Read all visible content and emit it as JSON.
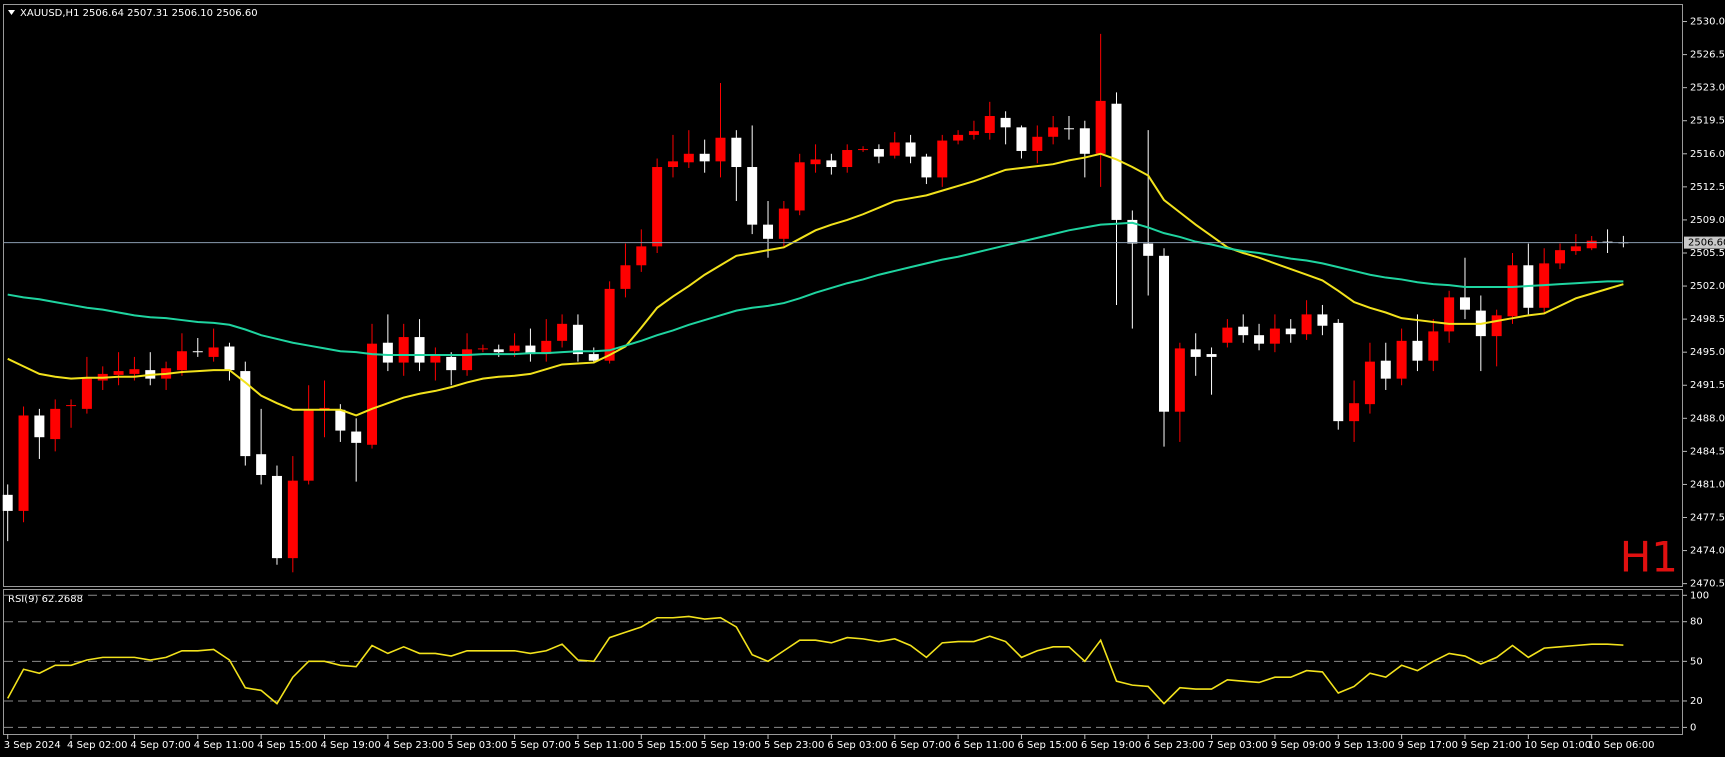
{
  "chart_data": [
    {
      "type": "candlestick",
      "title": "XAUUSD,H1  2506.64 2507.31 2506.10 2506.60",
      "watermark": "H1",
      "up_color": "#ff0000",
      "down_color": "#ffffff",
      "categories": [
        "3 Sep 2024",
        null,
        null,
        null,
        "4 Sep 02:00",
        null,
        null,
        null,
        "4 Sep 07:00",
        null,
        null,
        null,
        "4 Sep 11:00",
        null,
        null,
        null,
        "4 Sep 15:00",
        null,
        null,
        null,
        "4 Sep 19:00",
        null,
        null,
        null,
        "4 Sep 23:00",
        null,
        null,
        null,
        "5 Sep 03:00",
        null,
        null,
        null,
        "5 Sep 07:00",
        null,
        null,
        null,
        "5 Sep 11:00",
        null,
        null,
        null,
        "5 Sep 15:00",
        null,
        null,
        null,
        "5 Sep 19:00",
        null,
        null,
        null,
        "5 Sep 23:00",
        null,
        null,
        null,
        "6 Sep 03:00",
        null,
        null,
        null,
        "6 Sep 07:00",
        null,
        null,
        null,
        "6 Sep 11:00",
        null,
        null,
        null,
        "6 Sep 15:00",
        null,
        null,
        null,
        "6 Sep 19:00",
        null,
        null,
        null,
        "6 Sep 23:00",
        null,
        null,
        null,
        "7 Sep 03:00",
        null,
        null,
        null,
        "9 Sep 09:00",
        null,
        null,
        null,
        "9 Sep 13:00",
        null,
        null,
        null,
        "9 Sep 17:00",
        null,
        null,
        null,
        "9 Sep 21:00",
        null,
        null,
        null,
        "10 Sep 01:00",
        null,
        null,
        null,
        "10 Sep 06:00",
        null,
        null
      ],
      "open": [
        2479.9,
        2478.2,
        2488.3,
        2485.8,
        2489.3,
        2489.0,
        2492.0,
        2492.6,
        2492.7,
        2493.1,
        2492.2,
        2493.1,
        2495.1,
        2494.5,
        2495.6,
        2493.0,
        2484.2,
        2481.9,
        2473.2,
        2481.4,
        2489.0,
        2488.9,
        2486.6,
        2485.2,
        2496.0,
        2493.9,
        2496.6,
        2493.9,
        2494.5,
        2493.1,
        2495.3,
        2495.3,
        2495.1,
        2495.7,
        2494.8,
        2496.2,
        2497.9,
        2494.8,
        2494.1,
        2501.7,
        2504.2,
        2506.2,
        2514.6,
        2515.1,
        2516.0,
        2515.2,
        2517.7,
        2514.6,
        2508.5,
        2507.0,
        2510.0,
        2514.9,
        2515.3,
        2514.6,
        2516.4,
        2516.5,
        2515.8,
        2517.2,
        2515.7,
        2513.5,
        2517.4,
        2518.0,
        2518.2,
        2519.8,
        2518.8,
        2516.3,
        2517.8,
        2518.7,
        2518.7,
        2516.0,
        2521.3,
        2509.0,
        2506.5,
        2505.2,
        2488.7,
        2495.3,
        2494.8,
        2496.0,
        2497.7,
        2496.8,
        2495.9,
        2497.5,
        2496.9,
        2499.0,
        2498.1,
        2487.7,
        2489.5,
        2494.1,
        2492.2,
        2496.2,
        2494.1,
        2497.2,
        2500.8,
        2499.4,
        2496.7,
        2498.8,
        2504.2,
        2499.7,
        2504.4,
        2505.7,
        2506.0,
        2506.7,
        2506.64
      ],
      "high": [
        2481,
        2489.25,
        2489,
        2490,
        2490,
        2494.5,
        2493.5,
        2495,
        2494.5,
        2495,
        2494,
        2497,
        2496.5,
        2497.5,
        2496,
        2494,
        2489,
        2483,
        2484,
        2491.5,
        2492,
        2489.5,
        2488,
        2498,
        2499,
        2498,
        2498.5,
        2495.5,
        2495,
        2497,
        2495.8,
        2495.8,
        2497,
        2497.5,
        2498.5,
        2499,
        2499,
        2495.5,
        2502.5,
        2506.5,
        2508,
        2515.5,
        2518,
        2518.5,
        2517.5,
        2523.5,
        2518.5,
        2519,
        2511,
        2511,
        2516,
        2517,
        2516,
        2517,
        2516.8,
        2517,
        2518.3,
        2518,
        2516,
        2518,
        2518.5,
        2519.5,
        2521.5,
        2520.5,
        2519,
        2519,
        2520,
        2520,
        2519.5,
        2528.7,
        2522.5,
        2510,
        2518.5,
        2506,
        2496,
        2497,
        2495.5,
        2498.5,
        2499,
        2498,
        2499,
        2498.5,
        2500.5,
        2500,
        2498.5,
        2492,
        2496,
        2496,
        2497.5,
        2499,
        2498.5,
        2501.5,
        2505,
        2501,
        2499.5,
        2505.5,
        2506.5,
        2506,
        2506.5,
        2507.5,
        2507.3,
        2508,
        2507.31
      ],
      "low": [
        2475,
        2477,
        2483.7,
        2484.5,
        2487,
        2488.5,
        2491,
        2491.5,
        2492,
        2491.5,
        2491,
        2492.5,
        2494.5,
        2494,
        2492,
        2483,
        2481,
        2472.5,
        2471.7,
        2481,
        2486,
        2485.5,
        2481.3,
        2484.8,
        2493,
        2492.5,
        2493,
        2492,
        2491.5,
        2492.5,
        2495,
        2494.5,
        2494.5,
        2494,
        2494,
        2495.5,
        2494,
        2493.8,
        2493.8,
        2500.8,
        2503.5,
        2505.5,
        2513.5,
        2514.5,
        2514,
        2513.5,
        2511,
        2507.5,
        2505,
        2506,
        2509.5,
        2514,
        2513.8,
        2514,
        2516.2,
        2515,
        2515.5,
        2515,
        2512.8,
        2512.5,
        2517,
        2517.5,
        2517.5,
        2517,
        2515.5,
        2515,
        2517,
        2517.5,
        2513.5,
        2512.5,
        2500,
        2497.5,
        2501,
        2485,
        2485.5,
        2492.5,
        2490.5,
        2495.5,
        2496,
        2495.2,
        2495,
        2496,
        2496.3,
        2496.8,
        2486.8,
        2485.5,
        2488.5,
        2491,
        2491.5,
        2493,
        2493,
        2496,
        2498.5,
        2493,
        2493.5,
        2498,
        2499,
        2499,
        2503.8,
        2505.3,
        2505.8,
        2505.5,
        2506.1
      ],
      "close": [
        2478.2,
        2488.3,
        2486.0,
        2489.0,
        2489.4,
        2492.2,
        2492.7,
        2493.0,
        2493.2,
        2492.2,
        2493.3,
        2495.1,
        2495.0,
        2495.5,
        2493.1,
        2484.0,
        2482.0,
        2473.2,
        2481.4,
        2488.9,
        2489.1,
        2486.7,
        2485.4,
        2495.9,
        2493.9,
        2496.6,
        2493.9,
        2494.7,
        2493.1,
        2495.3,
        2495.4,
        2495.0,
        2495.7,
        2494.8,
        2496.2,
        2498.0,
        2494.8,
        2494.1,
        2501.7,
        2504.2,
        2506.2,
        2514.6,
        2515.2,
        2516.0,
        2515.2,
        2517.7,
        2514.6,
        2508.5,
        2507.0,
        2510.2,
        2515.1,
        2515.4,
        2514.6,
        2516.4,
        2516.5,
        2515.7,
        2517.2,
        2515.7,
        2513.5,
        2517.4,
        2518.0,
        2518.4,
        2520.0,
        2518.8,
        2516.3,
        2517.8,
        2518.8,
        2518.6,
        2516.0,
        2521.6,
        2509.0,
        2506.5,
        2505.2,
        2488.7,
        2495.4,
        2494.5,
        2494.5,
        2497.6,
        2496.8,
        2495.9,
        2497.5,
        2496.9,
        2499.0,
        2497.8,
        2487.7,
        2489.6,
        2494.0,
        2492.2,
        2496.2,
        2494.1,
        2497.2,
        2500.8,
        2499.5,
        2496.7,
        2498.9,
        2504.2,
        2499.7,
        2504.4,
        2505.8,
        2506.2,
        2506.8,
        2506.6,
        2506.6
      ],
      "series": [
        {
          "color": "#f2e21c",
          "values": [
            2494.3,
            2493.5,
            2492.7,
            2492.4,
            2492.2,
            2492.3,
            2492.3,
            2492.4,
            2492.4,
            2492.6,
            2492.7,
            2492.9,
            2493.0,
            2493.1,
            2493.1,
            2491.8,
            2490.4,
            2489.6,
            2488.9,
            2488.9,
            2488.9,
            2488.9,
            2488.3,
            2489.0,
            2489.6,
            2490.2,
            2490.6,
            2490.9,
            2491.3,
            2491.8,
            2492.2,
            2492.4,
            2492.5,
            2492.7,
            2493.2,
            2493.7,
            2493.8,
            2493.9,
            2494.7,
            2495.6,
            2497.6,
            2499.7,
            2500.9,
            2502.0,
            2503.2,
            2504.2,
            2505.2,
            2505.5,
            2505.8,
            2506.1,
            2507.0,
            2507.9,
            2508.5,
            2509.0,
            2509.6,
            2510.3,
            2511.0,
            2511.3,
            2511.6,
            2512.1,
            2512.6,
            2513.1,
            2513.7,
            2514.3,
            2514.5,
            2514.7,
            2514.9,
            2515.3,
            2515.6,
            2516.0,
            2515.4,
            2514.6,
            2513.7,
            2511.1,
            2509.8,
            2508.5,
            2507.3,
            2506.1,
            2505.5,
            2505.0,
            2504.4,
            2503.8,
            2503.2,
            2502.6,
            2501.5,
            2500.3,
            2499.7,
            2499.2,
            2498.6,
            2498.4,
            2498.2,
            2498.0,
            2498.0,
            2498.0,
            2498.3,
            2498.6,
            2498.9,
            2499.1,
            2499.9,
            2500.7,
            2501.2,
            2501.7,
            2502.2
          ]
        },
        {
          "color": "#1fd4a0",
          "values": [
            2501.1,
            2500.8,
            2500.6,
            2500.3,
            2500.0,
            2499.7,
            2499.5,
            2499.2,
            2498.9,
            2498.7,
            2498.6,
            2498.4,
            2498.2,
            2498.1,
            2497.9,
            2497.4,
            2496.8,
            2496.4,
            2496.0,
            2495.7,
            2495.4,
            2495.1,
            2495.0,
            2494.8,
            2494.7,
            2494.7,
            2494.7,
            2494.7,
            2494.7,
            2494.7,
            2494.8,
            2494.8,
            2494.8,
            2494.9,
            2494.9,
            2495.0,
            2495.1,
            2495.1,
            2495.2,
            2495.7,
            2496.2,
            2496.8,
            2497.3,
            2497.9,
            2498.4,
            2498.9,
            2499.4,
            2499.7,
            2499.9,
            2500.2,
            2500.7,
            2501.3,
            2501.8,
            2502.3,
            2502.7,
            2503.2,
            2503.6,
            2504.0,
            2504.4,
            2504.8,
            2505.1,
            2505.5,
            2505.9,
            2506.3,
            2506.7,
            2507.1,
            2507.5,
            2507.9,
            2508.2,
            2508.5,
            2508.6,
            2508.7,
            2508.2,
            2507.6,
            2507.2,
            2506.7,
            2506.4,
            2506.0,
            2505.7,
            2505.5,
            2505.2,
            2504.9,
            2504.7,
            2504.4,
            2504.0,
            2503.6,
            2503.2,
            2502.9,
            2502.7,
            2502.4,
            2502.2,
            2502.1,
            2501.9,
            2501.9,
            2501.9,
            2501.9,
            2502.0,
            2502.1,
            2502.2,
            2502.3,
            2502.4,
            2502.5,
            2502.5
          ]
        }
      ],
      "price_line": {
        "value": 2506.6,
        "label": "2506.60"
      },
      "ylim": [
        2470.25,
        2531.75
      ],
      "yticks": [
        {
          "value": 2530,
          "label": "2530.00"
        },
        {
          "value": 2526.5,
          "label": "2526.50"
        },
        {
          "value": 2523,
          "label": "2523.00"
        },
        {
          "value": 2519.5,
          "label": "2519.50"
        },
        {
          "value": 2516,
          "label": "2516.00"
        },
        {
          "value": 2512.5,
          "label": "2512.50"
        },
        {
          "value": 2509,
          "label": "2509.00"
        },
        {
          "value": 2505.5,
          "label": "2505.50"
        },
        {
          "value": 2502,
          "label": "2502.00"
        },
        {
          "value": 2498.5,
          "label": "2498.50"
        },
        {
          "value": 2495,
          "label": "2495.00"
        },
        {
          "value": 2491.5,
          "label": "2491.50"
        },
        {
          "value": 2488,
          "label": "2488.00"
        },
        {
          "value": 2484.5,
          "label": "2484.50"
        },
        {
          "value": 2481,
          "label": "2481.00"
        },
        {
          "value": 2477.5,
          "label": "2477.50"
        },
        {
          "value": 2474,
          "label": "2474.00"
        },
        {
          "value": 2470.5,
          "label": "2470.50"
        }
      ],
      "grid": false
    },
    {
      "type": "line",
      "title": "RSI(9) 62.2688",
      "color": "#f2e21c",
      "values": [
        22,
        44,
        41,
        47,
        47,
        51,
        53,
        53,
        53,
        51,
        53,
        58,
        58,
        59,
        51,
        30,
        28,
        18,
        38,
        50,
        50,
        47,
        46,
        62,
        56,
        61,
        56,
        56,
        54,
        58,
        58,
        58,
        58,
        56,
        58,
        63,
        51,
        50,
        68,
        72,
        76,
        83,
        83,
        84,
        82,
        83,
        76,
        55,
        50,
        58,
        66,
        66,
        64,
        68,
        67,
        65,
        67,
        62,
        53,
        64,
        65,
        65,
        69,
        65,
        53,
        58,
        61,
        61,
        50,
        66,
        35,
        32,
        31,
        18,
        30,
        29,
        29,
        36,
        35,
        34,
        38,
        38,
        43,
        42,
        26,
        31,
        41,
        38,
        47,
        43,
        50,
        56,
        54,
        48,
        53,
        62,
        53,
        60,
        61,
        62,
        63,
        63,
        62.2688
      ],
      "ylim": [
        -5,
        104
      ],
      "yticks": [
        100,
        80,
        50,
        20,
        0
      ],
      "grid": true
    }
  ]
}
